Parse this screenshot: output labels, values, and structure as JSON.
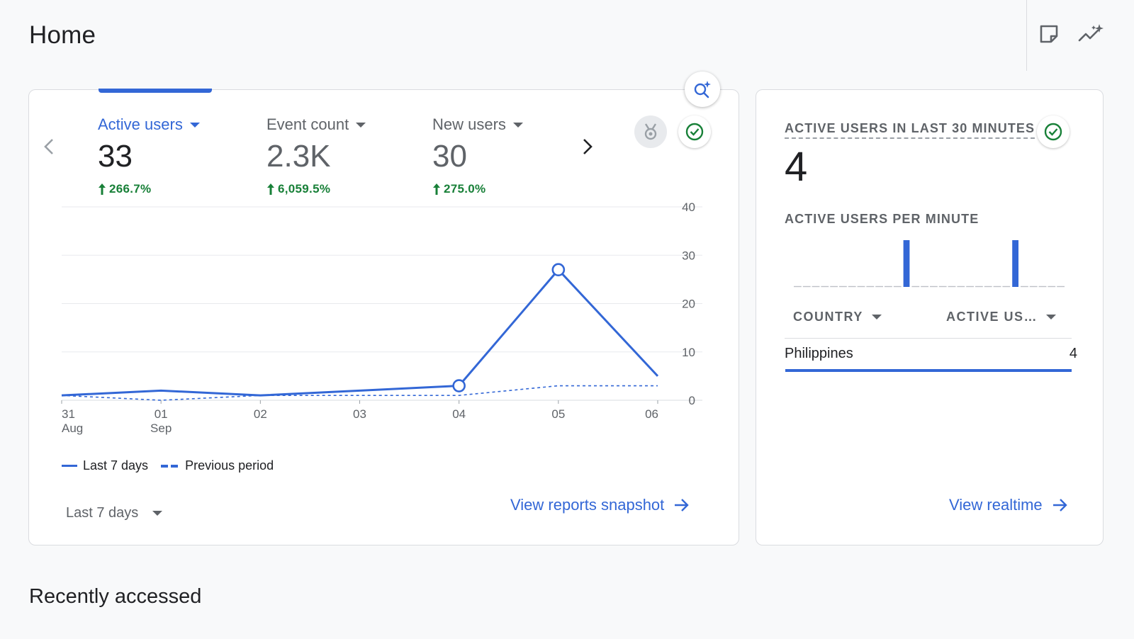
{
  "page": {
    "title": "Home"
  },
  "header": {
    "notes_icon": "note-icon",
    "insights_icon": "insights-sparkle-icon"
  },
  "overview": {
    "metrics": [
      {
        "label": "Active users",
        "value": "33",
        "change": "266.7%",
        "active": true
      },
      {
        "label": "Event count",
        "value": "2.3K",
        "change": "6,059.5%",
        "active": false
      },
      {
        "label": "New users",
        "value": "30",
        "change": "275.0%",
        "active": false
      }
    ],
    "legend": {
      "current": "Last 7 days",
      "previous": "Previous period"
    },
    "date_range": "Last 7 days",
    "link": "View reports snapshot"
  },
  "chart_data": {
    "type": "line",
    "x": [
      "31 Aug",
      "01 Sep",
      "02",
      "03",
      "04",
      "05",
      "06"
    ],
    "x_tick_labels": [
      [
        "31",
        "Aug"
      ],
      [
        "01",
        "Sep"
      ],
      [
        "02",
        ""
      ],
      [
        "03",
        ""
      ],
      [
        "04",
        ""
      ],
      [
        "05",
        ""
      ],
      [
        "06",
        ""
      ]
    ],
    "y_ticks": [
      0,
      10,
      20,
      30,
      40
    ],
    "ylim": [
      0,
      40
    ],
    "series": [
      {
        "name": "Last 7 days",
        "values": [
          1,
          2,
          1,
          2,
          3,
          27,
          5
        ],
        "style": "solid",
        "markers": [
          4,
          5
        ]
      },
      {
        "name": "Previous period",
        "values": [
          1,
          0,
          1,
          1,
          1,
          3,
          3
        ],
        "style": "dashed"
      }
    ],
    "colors": {
      "line": "#3367d6",
      "grid": "#e8eaed",
      "tick": "#5f6368"
    },
    "grid": true,
    "legend": "bottom-left"
  },
  "realtime": {
    "title": "ACTIVE USERS IN LAST 30 MINUTES",
    "value": "4",
    "per_minute_label": "ACTIVE USERS PER MINUTE",
    "per_minute": [
      0,
      0,
      0,
      0,
      0,
      0,
      0,
      0,
      0,
      0,
      0,
      0,
      2,
      0,
      0,
      0,
      0,
      0,
      0,
      0,
      0,
      0,
      0,
      0,
      2,
      0,
      0,
      0,
      0,
      0
    ],
    "columns": [
      "COUNTRY",
      "ACTIVE US…"
    ],
    "rows": [
      {
        "country": "Philippines",
        "value": "4"
      }
    ],
    "link": "View realtime"
  },
  "recent": {
    "title": "Recently accessed"
  }
}
